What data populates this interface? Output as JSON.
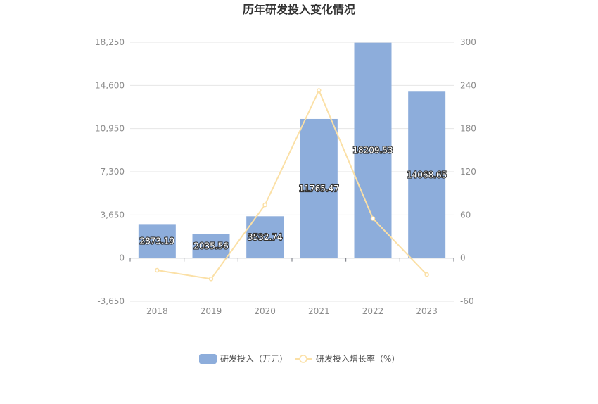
{
  "chart_data": {
    "type": "bar",
    "title": "历年研发投入变化情况",
    "categories": [
      "2018",
      "2019",
      "2020",
      "2021",
      "2022",
      "2023"
    ],
    "series": [
      {
        "name": "研发投入（万元）",
        "type": "bar",
        "axis": "left",
        "values": [
          2873.19,
          2035.56,
          3532.74,
          11765.47,
          18209.53,
          14068.65
        ],
        "labels": [
          "2873.19",
          "2035.56",
          "3532.74",
          "11765.47",
          "18209.53",
          "14068.65"
        ],
        "color": "#8daddb"
      },
      {
        "name": "研发投入增长率（%）",
        "type": "line",
        "axis": "right",
        "values": [
          -17,
          -29,
          74,
          233,
          55,
          -23
        ],
        "color": "#fbe0a6"
      }
    ],
    "y_left": {
      "ylim": [
        -3650,
        18250
      ],
      "ticks": [
        18250,
        14600,
        10950,
        7300,
        3650,
        0,
        -3650
      ],
      "tick_labels": [
        "18,250",
        "14,600",
        "10,950",
        "7,300",
        "3,650",
        "0",
        "-3,650"
      ]
    },
    "y_right": {
      "ylim": [
        -60,
        300
      ],
      "ticks": [
        300,
        240,
        180,
        120,
        60,
        0,
        -60
      ],
      "tick_labels": [
        "300",
        "240",
        "180",
        "120",
        "60",
        "0",
        "-60"
      ]
    },
    "grid": true,
    "legend_position": "bottom"
  }
}
